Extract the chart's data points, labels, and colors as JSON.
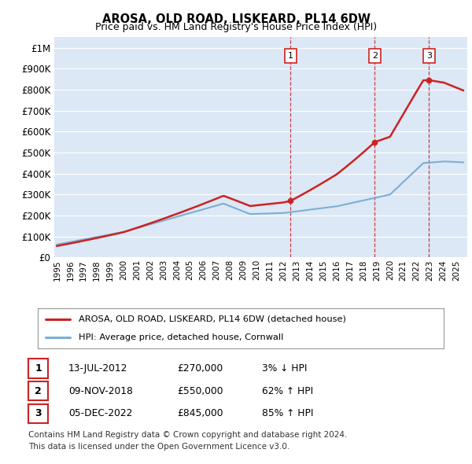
{
  "title": "AROSA, OLD ROAD, LISKEARD, PL14 6DW",
  "subtitle": "Price paid vs. HM Land Registry's House Price Index (HPI)",
  "ylabel_ticks": [
    "£0",
    "£100K",
    "£200K",
    "£300K",
    "£400K",
    "£500K",
    "£600K",
    "£700K",
    "£800K",
    "£900K",
    "£1M"
  ],
  "ytick_values": [
    0,
    100000,
    200000,
    300000,
    400000,
    500000,
    600000,
    700000,
    800000,
    900000,
    1000000
  ],
  "ylim": [
    0,
    1050000
  ],
  "xlim_start": 1994.8,
  "xlim_end": 2025.8,
  "hpi_color": "#7bafd4",
  "price_color": "#cc2222",
  "dashed_color": "#cc2222",
  "background_color": "#dce8f5",
  "grid_color": "#ffffff",
  "transactions": [
    {
      "label": "1",
      "date": 2012.54,
      "price": 270000,
      "date_str": "13-JUL-2012",
      "pct_str": "3% ↓ HPI"
    },
    {
      "label": "2",
      "date": 2018.86,
      "price": 550000,
      "date_str": "09-NOV-2018",
      "pct_str": "62% ↑ HPI"
    },
    {
      "label": "3",
      "date": 2022.93,
      "price": 845000,
      "date_str": "05-DEC-2022",
      "pct_str": "85% ↑ HPI"
    }
  ],
  "legend_line1": "AROSA, OLD ROAD, LISKEARD, PL14 6DW (detached house)",
  "legend_line2": "HPI: Average price, detached house, Cornwall",
  "footnote_line1": "Contains HM Land Registry data © Crown copyright and database right 2024.",
  "footnote_line2": "This data is licensed under the Open Government Licence v3.0.",
  "table_rows": [
    [
      "1",
      "13-JUL-2012",
      "£270,000",
      "3% ↓ HPI"
    ],
    [
      "2",
      "09-NOV-2018",
      "£550,000",
      "62% ↑ HPI"
    ],
    [
      "3",
      "05-DEC-2022",
      "£845,000",
      "85% ↑ HPI"
    ]
  ]
}
